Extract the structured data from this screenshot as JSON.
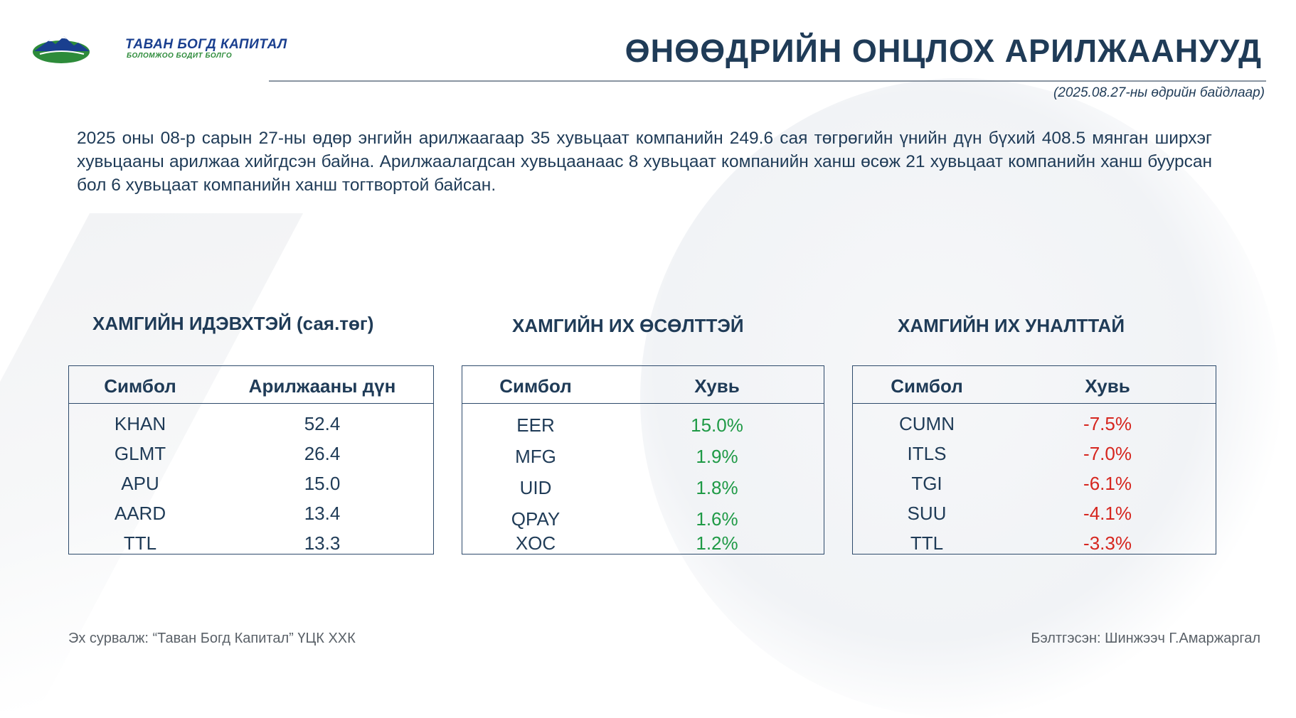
{
  "brand": {
    "name": "ТАВАН БОГД КАПИТАЛ",
    "slogan": "БОЛОМЖОО БОДИТ БОЛГО"
  },
  "header": {
    "title": "ӨНӨӨДРИЙН ОНЦЛОХ АРИЛЖААНУУД",
    "as_of": "(2025.08.27-ны өдрийн байдлаар)"
  },
  "summary": "2025 оны 08-р сарын 27-ны өдөр энгийн арилжаагаар 35 хувьцаат компанийн 249.6 сая төгрөгийн үнийн дүн бүхий 408.5 мянган ширхэг хувьцааны арилжаа хийгдсэн байна. Арилжаалагдсан хувьцаанаас 8 хувьцаат компанийн ханш өсөж 21 хувьцаат компанийн ханш буурсан бол 6 хувьцаат компанийн ханш тогтвортой байсан.",
  "colors": {
    "navy": "#1f3b57",
    "gain": "#1f9a46",
    "loss": "#d6261f",
    "brand_blue": "#1a3f8f",
    "brand_green": "#2d8b3a"
  },
  "panels": {
    "active": {
      "title": "ХАМГИЙН ИДЭВХТЭЙ (сая.төг)",
      "col1": "Симбол",
      "col2": "Арилжааны дүн",
      "rows": [
        {
          "symbol": "KHAN",
          "value": "52.4"
        },
        {
          "symbol": "GLMT",
          "value": "26.4"
        },
        {
          "symbol": "APU",
          "value": "15.0"
        },
        {
          "symbol": "AARD",
          "value": "13.4"
        },
        {
          "symbol": "TTL",
          "value": "13.3"
        }
      ]
    },
    "gainers": {
      "title": "ХАМГИЙН ИХ ӨСӨЛТТЭЙ",
      "col1": "Симбол",
      "col2": "Хувь",
      "rows": [
        {
          "symbol": "EER",
          "value": "15.0%"
        },
        {
          "symbol": "MFG",
          "value": "1.9%"
        },
        {
          "symbol": "UID",
          "value": "1.8%"
        },
        {
          "symbol": "QPAY",
          "value": "1.6%"
        },
        {
          "symbol": "XOC",
          "value": "1.2%"
        }
      ]
    },
    "losers": {
      "title": "ХАМГИЙН ИХ УНАЛТТАЙ",
      "col1": "Симбол",
      "col2": "Хувь",
      "rows": [
        {
          "symbol": "CUMN",
          "value": "-7.5%"
        },
        {
          "symbol": "ITLS",
          "value": "-7.0%"
        },
        {
          "symbol": "TGI",
          "value": "-6.1%"
        },
        {
          "symbol": "SUU",
          "value": "-4.1%"
        },
        {
          "symbol": "TTL",
          "value": "-3.3%"
        }
      ]
    }
  },
  "footer": {
    "source": "Эх сурвалж: “Таван Богд Капитал” ҮЦК ХХК",
    "prepared_by": "Бэлтгэсэн: Шинжээч Г.Амаржаргал"
  }
}
